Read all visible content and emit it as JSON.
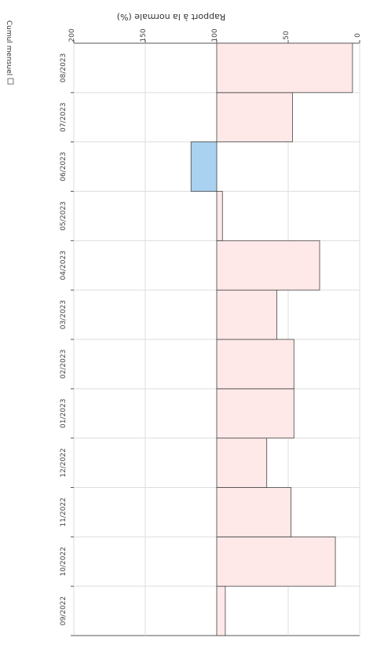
{
  "chart_data": {
    "type": "bar",
    "orientation": "horizontal",
    "rotated": "180deg",
    "ylabel": "Rapport à la normale (%)",
    "categories": [
      "09/2022",
      "10/2022",
      "11/2022",
      "12/2022",
      "01/2023",
      "02/2023",
      "03/2023",
      "04/2023",
      "05/2023",
      "06/2023",
      "07/2023",
      "08/2023"
    ],
    "values": [
      94,
      17,
      48,
      65,
      46,
      46,
      58,
      28,
      96,
      118,
      47,
      5
    ],
    "reference": 100,
    "axis_range": [
      0,
      200
    ],
    "axis_ticks": [
      "0",
      "50",
      "100",
      "150",
      "200"
    ],
    "grid": true,
    "colors": {
      "deficit_dark": "#ee1111",
      "deficit_light": "#ffe8e8",
      "surplus_light": "#d6ecfb",
      "surplus_dark": "#a9d2f1",
      "bar_border": "#444444",
      "grid": "#dddddd"
    },
    "legend": {
      "label": "Cumul mensuel",
      "position": "bottom"
    }
  }
}
